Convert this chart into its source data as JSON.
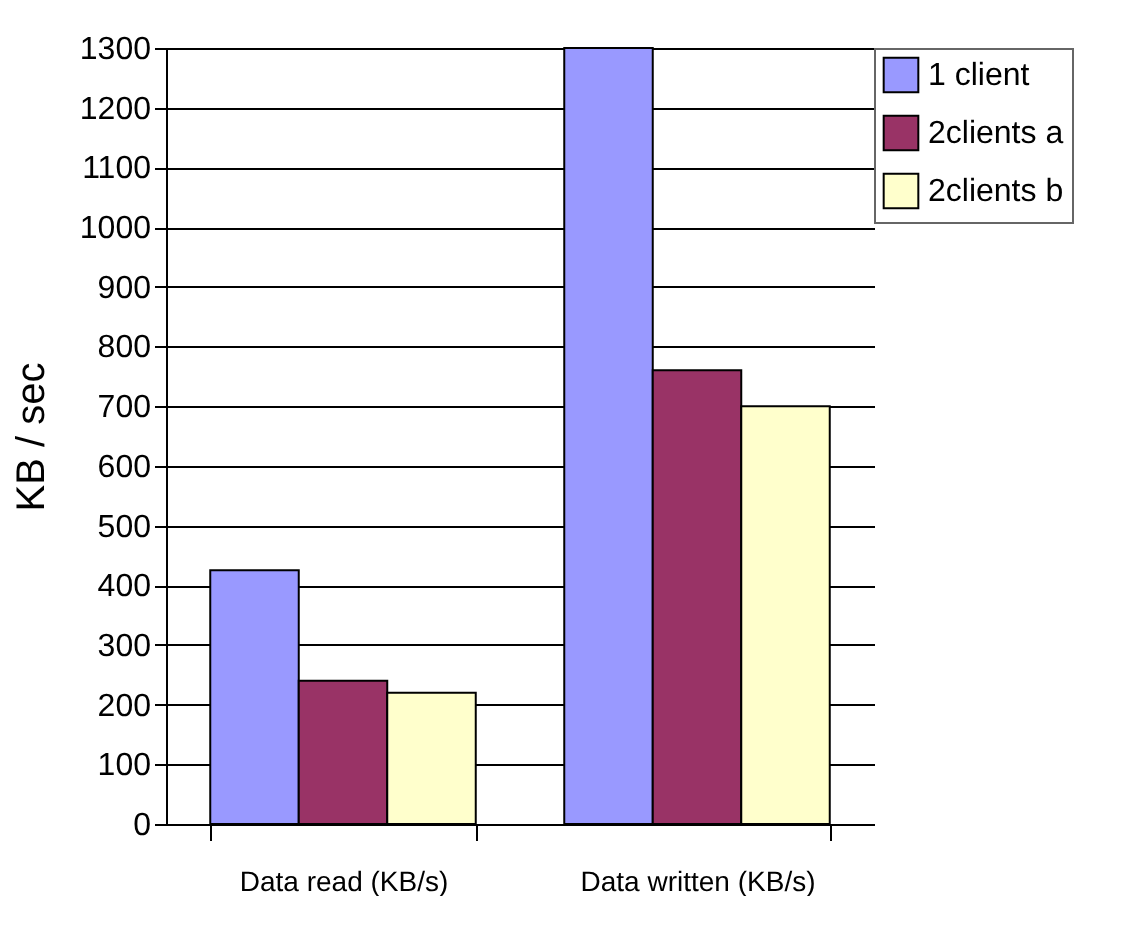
{
  "chart_data": {
    "type": "bar",
    "ylabel": "KB / sec",
    "categories": [
      "Data read (KB/s)",
      "Data written (KB/s)"
    ],
    "series": [
      {
        "name": "1 client",
        "color": "#9999ff",
        "values": [
          425,
          1300
        ]
      },
      {
        "name": "2clients a",
        "color": "#993366",
        "values": [
          240,
          760
        ]
      },
      {
        "name": "2clients b",
        "color": "#ffffcc",
        "values": [
          220,
          700
        ]
      }
    ],
    "ylim": [
      0,
      1300
    ],
    "yticks": [
      0,
      100,
      200,
      300,
      400,
      500,
      600,
      700,
      800,
      900,
      1000,
      1100,
      1200,
      1300
    ],
    "grid": "y",
    "legend": "right"
  }
}
